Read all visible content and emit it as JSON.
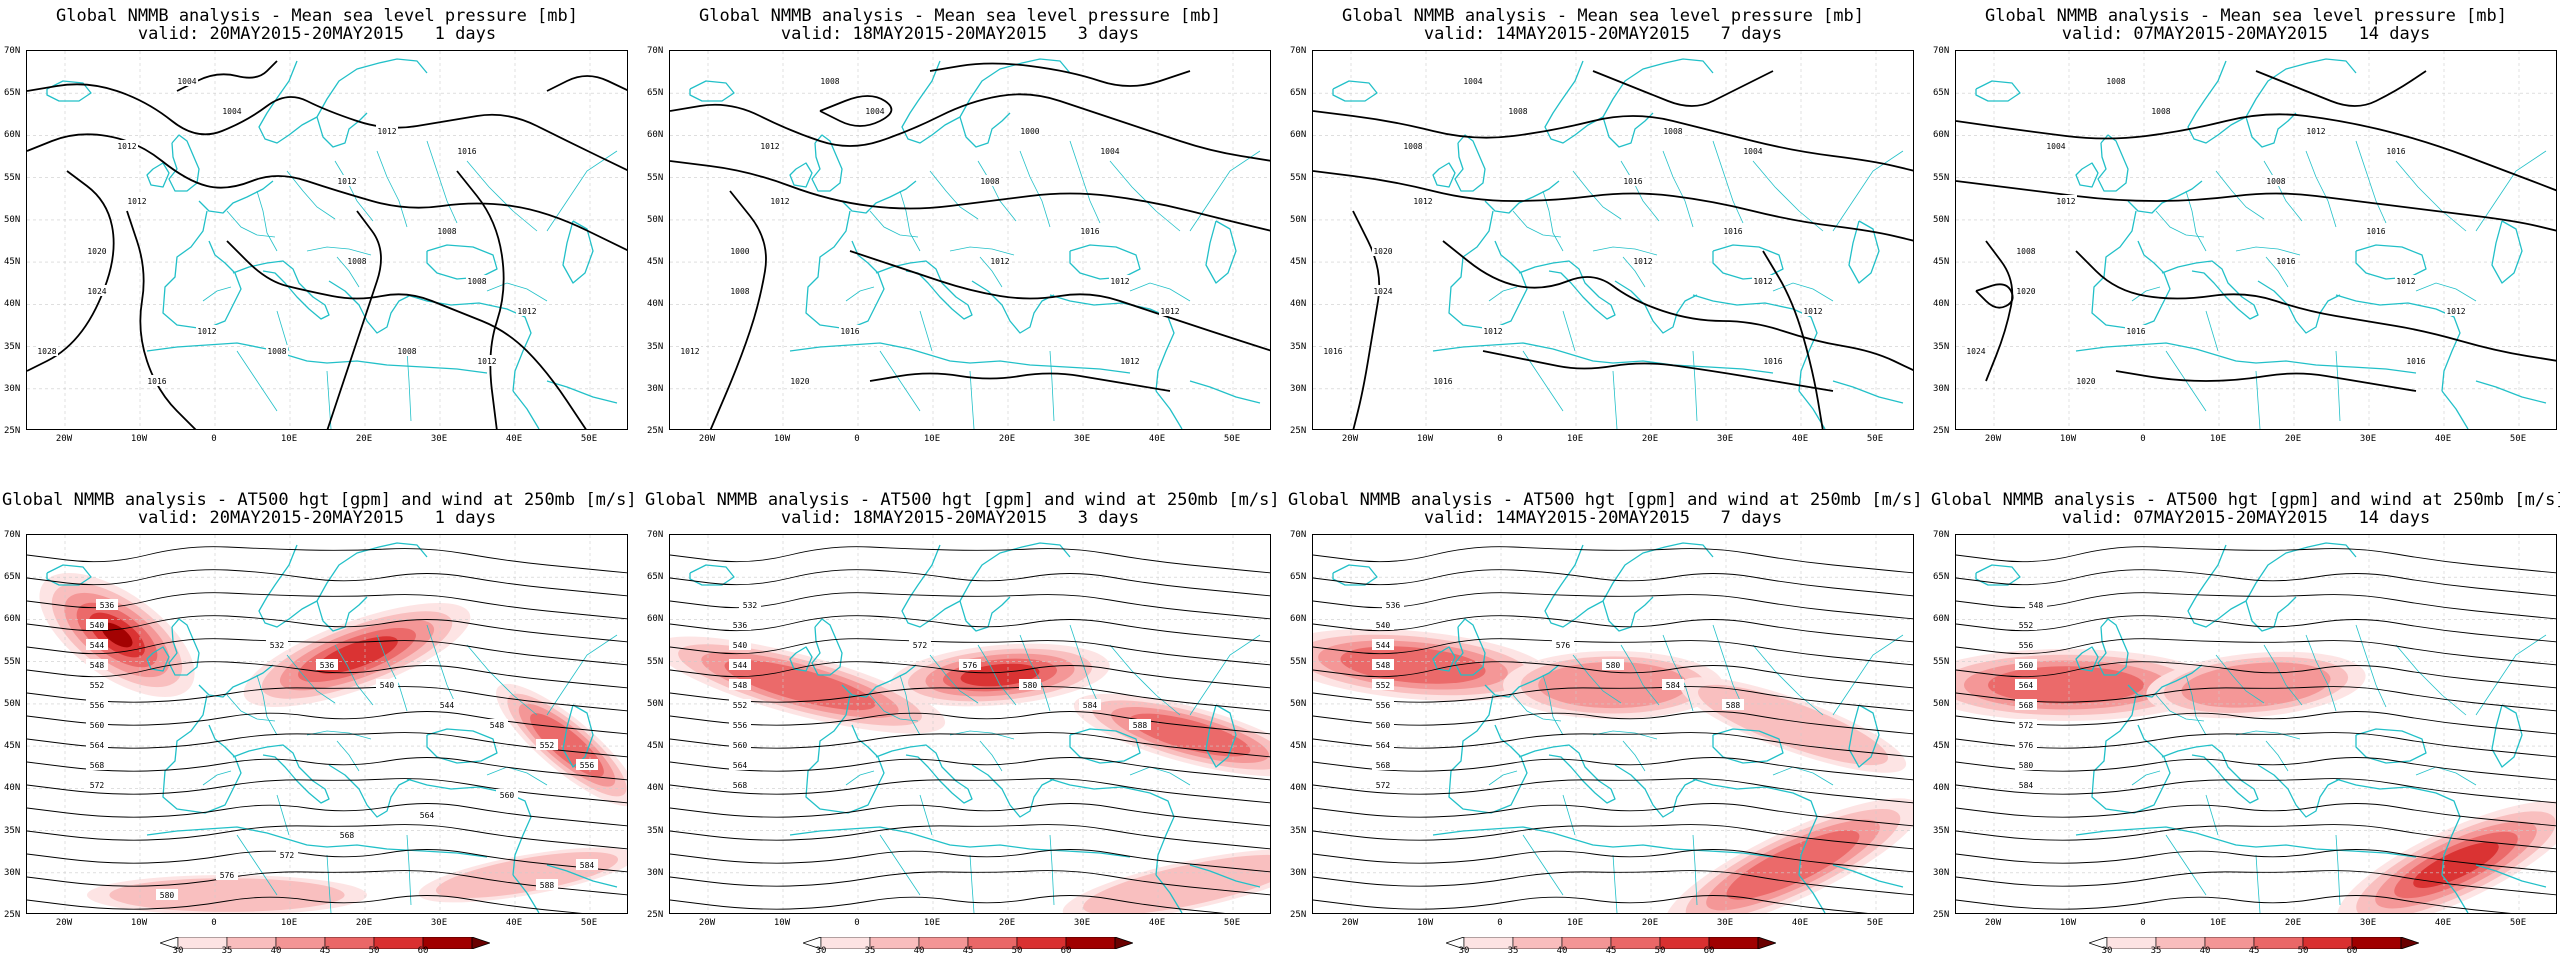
{
  "colors": {
    "coast": "#22c0c8",
    "contour": "#000000",
    "jet_levels": [
      "#fde3e3",
      "#f9bdbd",
      "#f39595",
      "#ea6767",
      "#d93030",
      "#a00000"
    ]
  },
  "lat_labels": [
    "70N",
    "65N",
    "60N",
    "55N",
    "50N",
    "45N",
    "40N",
    "35N",
    "30N",
    "25N"
  ],
  "lon_labels": [
    "20W",
    "10W",
    "0",
    "10E",
    "20E",
    "30E",
    "40E",
    "50E"
  ],
  "colorbar_ticks": [
    "30",
    "35",
    "40",
    "45",
    "50",
    "60"
  ],
  "top_row": [
    {
      "title": "Global NMMB analysis - Mean sea level pressure [mb]",
      "valid": "valid: 20MAY2015-20MAY2015   1 days",
      "labels": [
        "1004",
        "1012",
        "1004",
        "1012",
        "1016",
        "1012",
        "1012",
        "1020",
        "1024",
        "1028",
        "1016",
        "1012",
        "1008",
        "1008",
        "1008",
        "1012",
        "1012",
        "1008",
        "1008"
      ]
    },
    {
      "title": "Global NMMB analysis - Mean sea level pressure [mb]",
      "valid": "valid: 18MAY2015-20MAY2015   3 days",
      "labels": [
        "1008",
        "1012",
        "1004",
        "1000",
        "1004",
        "1008",
        "1012",
        "1000",
        "1008",
        "1012",
        "1020",
        "1016",
        "1012",
        "1016",
        "1012",
        "1012",
        "1012"
      ]
    },
    {
      "title": "Global NMMB analysis - Mean sea level pressure [mb]",
      "valid": "valid: 14MAY2015-20MAY2015   7 days",
      "labels": [
        "1004",
        "1008",
        "1008",
        "1008",
        "1004",
        "1016",
        "1012",
        "1020",
        "1024",
        "1016",
        "1016",
        "1012",
        "1012",
        "1016",
        "1012",
        "1012",
        "1016"
      ]
    },
    {
      "title": "Global NMMB analysis - Mean sea level pressure [mb]",
      "valid": "valid: 07MAY2015-20MAY2015   14 days",
      "labels": [
        "1008",
        "1004",
        "1008",
        "1012",
        "1016",
        "1008",
        "1012",
        "1008",
        "1020",
        "1024",
        "1020",
        "1016",
        "1016",
        "1016",
        "1012",
        "1012",
        "1016"
      ]
    }
  ],
  "bottom_row": [
    {
      "title": "Global NMMB analysis - AT500 hgt [gpm] and wind at 250mb [m/s]",
      "valid": "valid: 20MAY2015-20MAY2015   1 days",
      "labels": [
        "536",
        "540",
        "544",
        "548",
        "552",
        "556",
        "560",
        "564",
        "568",
        "572",
        "532",
        "536",
        "540",
        "544",
        "548",
        "552",
        "556",
        "560",
        "564",
        "568",
        "572",
        "576",
        "580",
        "584",
        "588"
      ]
    },
    {
      "title": "Global NMMB analysis - AT500 hgt [gpm] and wind at 250mb [m/s]",
      "valid": "valid: 18MAY2015-20MAY2015   3 days",
      "labels": [
        "532",
        "536",
        "540",
        "544",
        "548",
        "552",
        "556",
        "560",
        "564",
        "568",
        "572",
        "576",
        "580",
        "584",
        "588"
      ]
    },
    {
      "title": "Global NMMB analysis - AT500 hgt [gpm] and wind at 250mb [m/s]",
      "valid": "valid: 14MAY2015-20MAY2015   7 days",
      "labels": [
        "536",
        "540",
        "544",
        "548",
        "552",
        "556",
        "560",
        "564",
        "568",
        "572",
        "576",
        "580",
        "584",
        "588"
      ]
    },
    {
      "title": "Global NMMB analysis - AT500 hgt [gpm] and wind at 250mb [m/s]",
      "valid": "valid: 07MAY2015-20MAY2015   14 days",
      "labels": [
        "548",
        "552",
        "556",
        "560",
        "564",
        "568",
        "572",
        "576",
        "580",
        "584"
      ]
    }
  ]
}
